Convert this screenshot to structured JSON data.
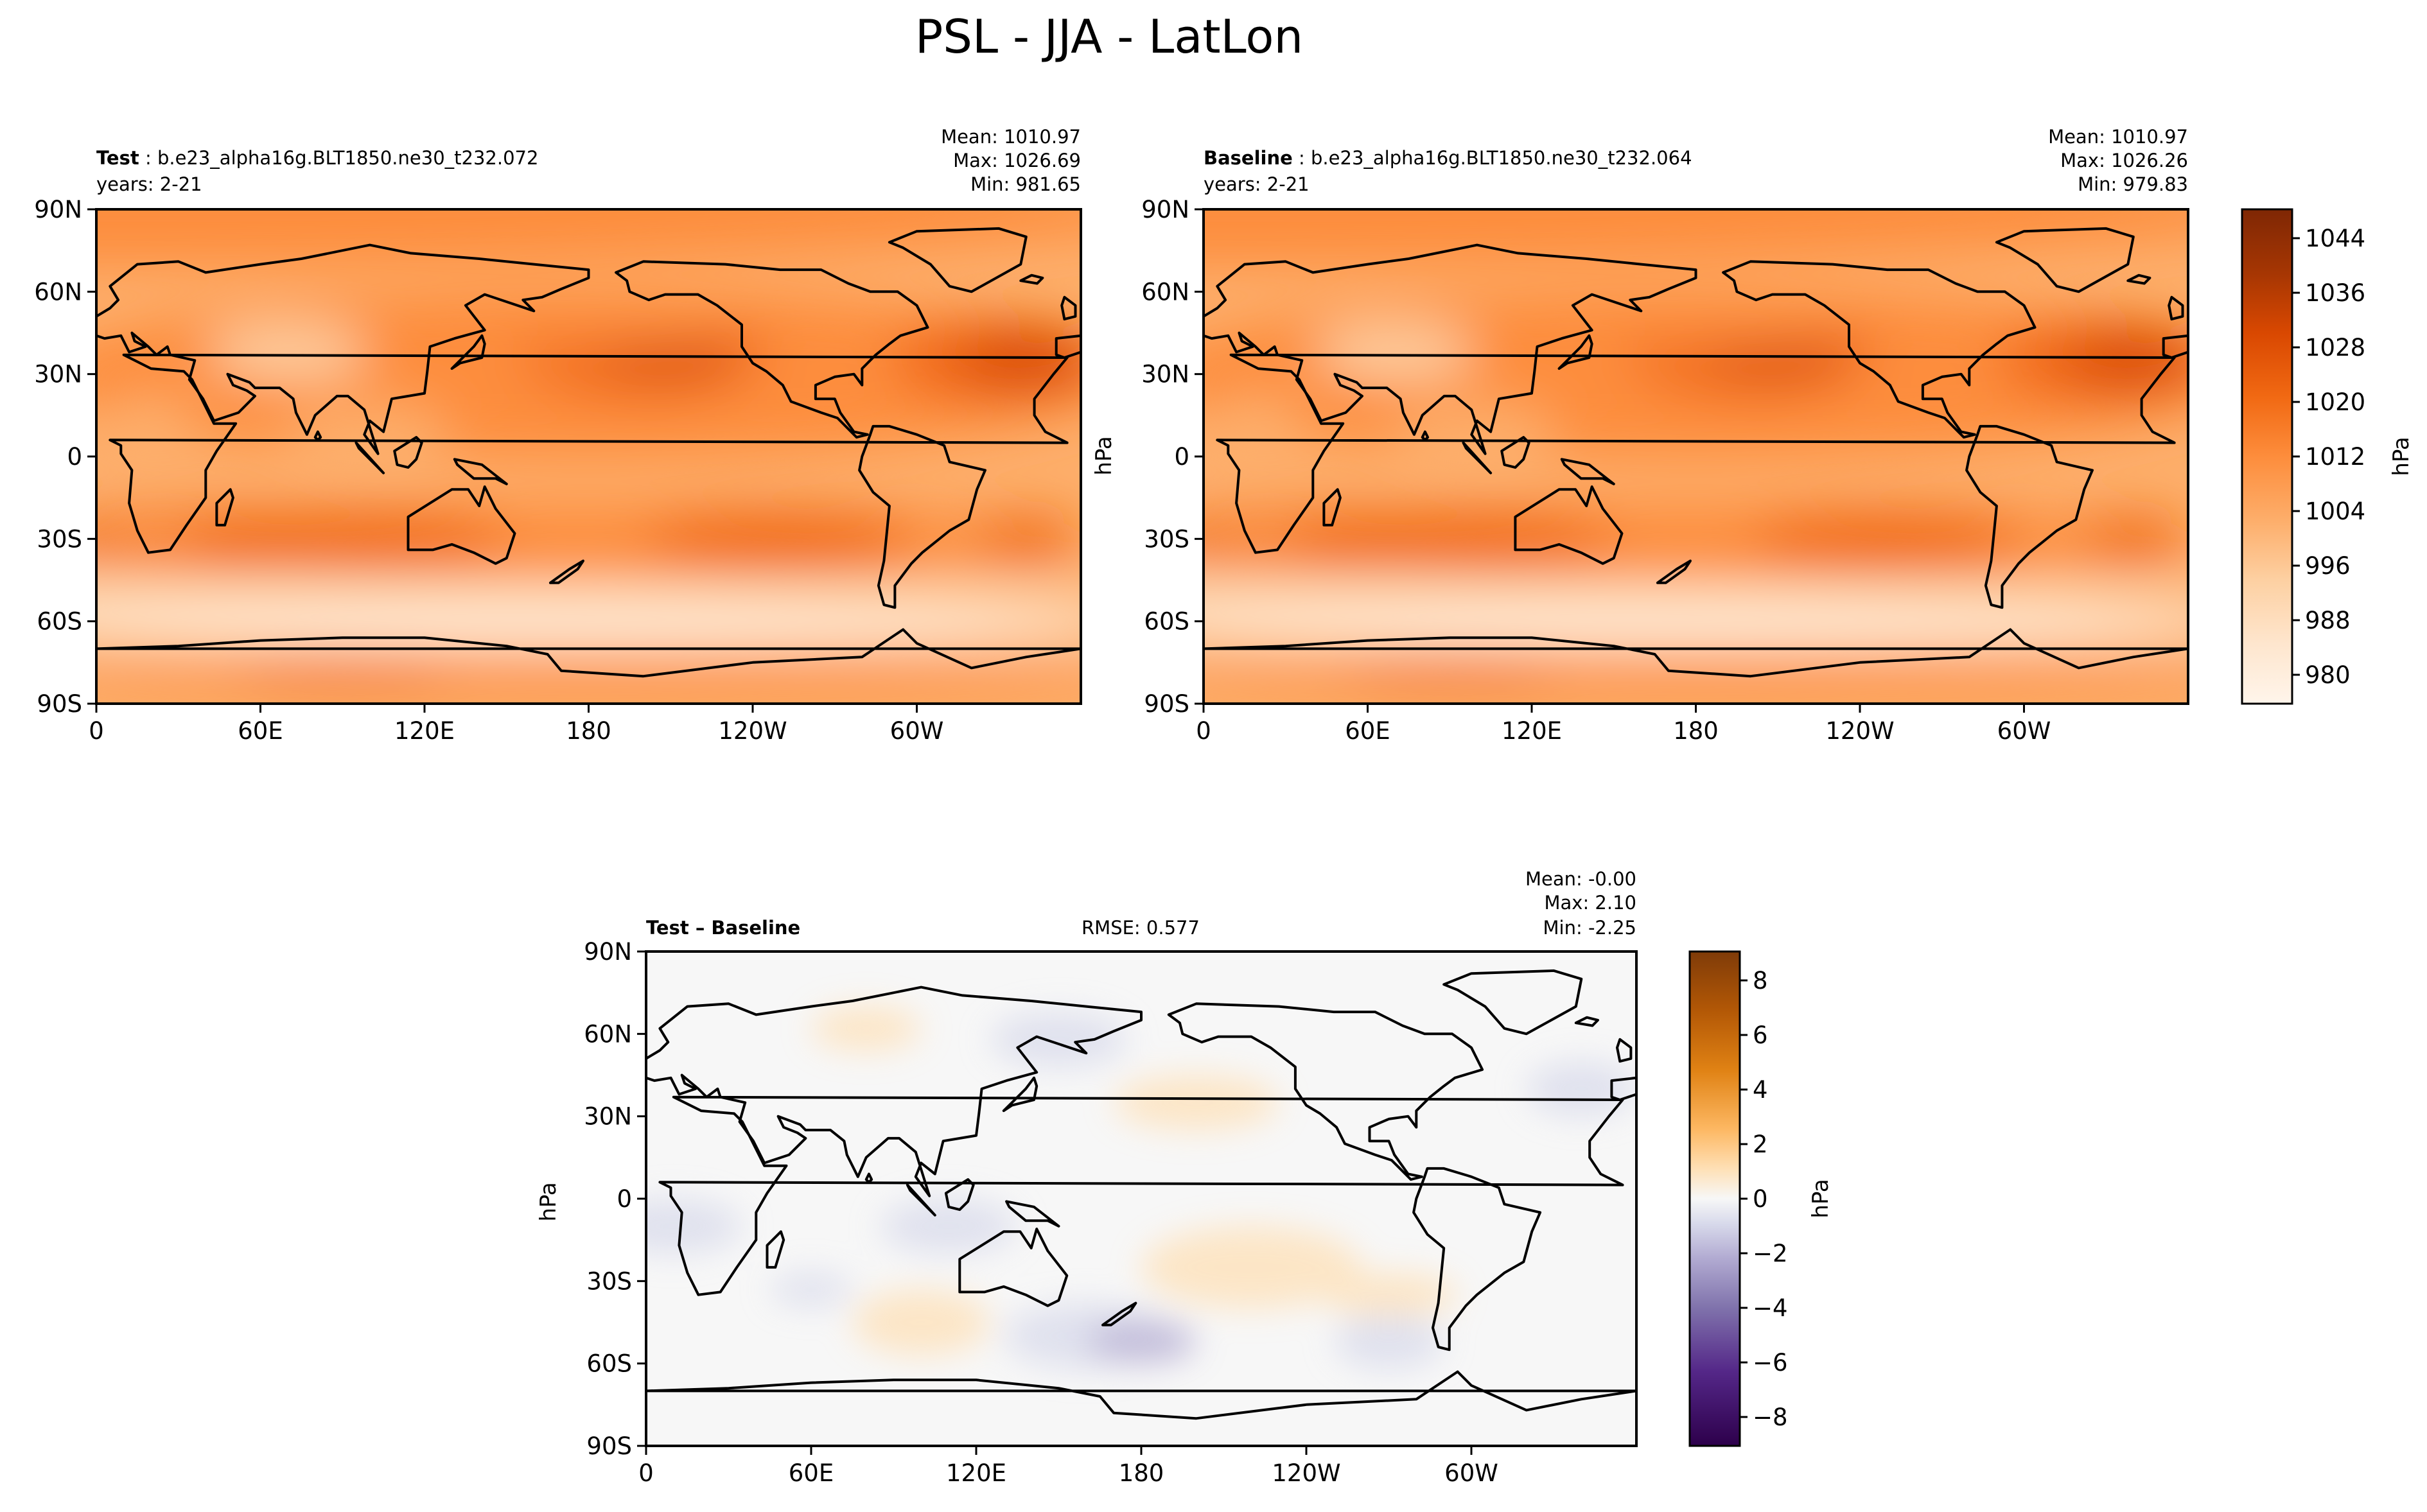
{
  "suptitle": "PSL - JJA - LatLon",
  "colors": {
    "test_cmap": [
      "#fff5eb",
      "#fee6ce",
      "#fdd0a2",
      "#fdae6b",
      "#fd8d3c",
      "#f16913",
      "#d94801",
      "#a63603",
      "#7f2704"
    ],
    "diff_cmap": [
      "#2d004b",
      "#542788",
      "#8073ac",
      "#b2abd2",
      "#d8daeb",
      "#f7f7f7",
      "#fee0b6",
      "#fdb863",
      "#e08214",
      "#b35806",
      "#7f3b08"
    ],
    "coastline": "#000000"
  },
  "chart_data": [
    {
      "type": "heatmap",
      "name": "Test",
      "title_label": "Test",
      "title_text": " : b.e23_alpha16g.BLT1850.ne30_t232.072",
      "years": "years: 2-21",
      "stats": [
        "Mean: 1010.97",
        "Max: 1026.69",
        "Min: 981.65"
      ],
      "xticks": [
        "0",
        "60E",
        "120E",
        "180",
        "120W",
        "60W"
      ],
      "yticks": [
        "90N",
        "60N",
        "30N",
        "0",
        "30S",
        "60S",
        "90S"
      ],
      "vmin": 980,
      "vmax": 1048,
      "units": "hPa"
    },
    {
      "type": "heatmap",
      "name": "Baseline",
      "title_label": "Baseline",
      "title_text": " : b.e23_alpha16g.BLT1850.ne30_t232.064",
      "years": "years: 2-21",
      "stats": [
        "Mean: 1010.97",
        "Max: 1026.26",
        "Min: 979.83"
      ],
      "xticks": [
        "0",
        "60E",
        "120E",
        "180",
        "120W",
        "60W"
      ],
      "yticks": [
        "90N",
        "60N",
        "30N",
        "0",
        "30S",
        "60S",
        "90S"
      ],
      "ylabel": "hPa",
      "vmin": 980,
      "vmax": 1048,
      "colorbar": {
        "ticks": [
          "1044",
          "1036",
          "1028",
          "1020",
          "1012",
          "1004",
          "996",
          "988",
          "980"
        ],
        "label": "hPa"
      },
      "units": "hPa"
    },
    {
      "type": "heatmap",
      "name": "Test - Baseline",
      "title_label": "Test – Baseline",
      "rmse": "RMSE: 0.577",
      "stats": [
        "Mean: -0.00",
        "Max:  2.10",
        "Min: -2.25"
      ],
      "xticks": [
        "0",
        "60E",
        "120E",
        "180",
        "120W",
        "60W"
      ],
      "yticks": [
        "90N",
        "60N",
        "30N",
        "0",
        "30S",
        "60S",
        "90S"
      ],
      "ylabel": "hPa",
      "vmin": -9,
      "vmax": 9,
      "colorbar": {
        "ticks": [
          "8",
          "6",
          "4",
          "2",
          "0",
          "−2",
          "−4",
          "−6",
          "−8"
        ],
        "label": "hPa"
      },
      "units": "hPa"
    }
  ]
}
